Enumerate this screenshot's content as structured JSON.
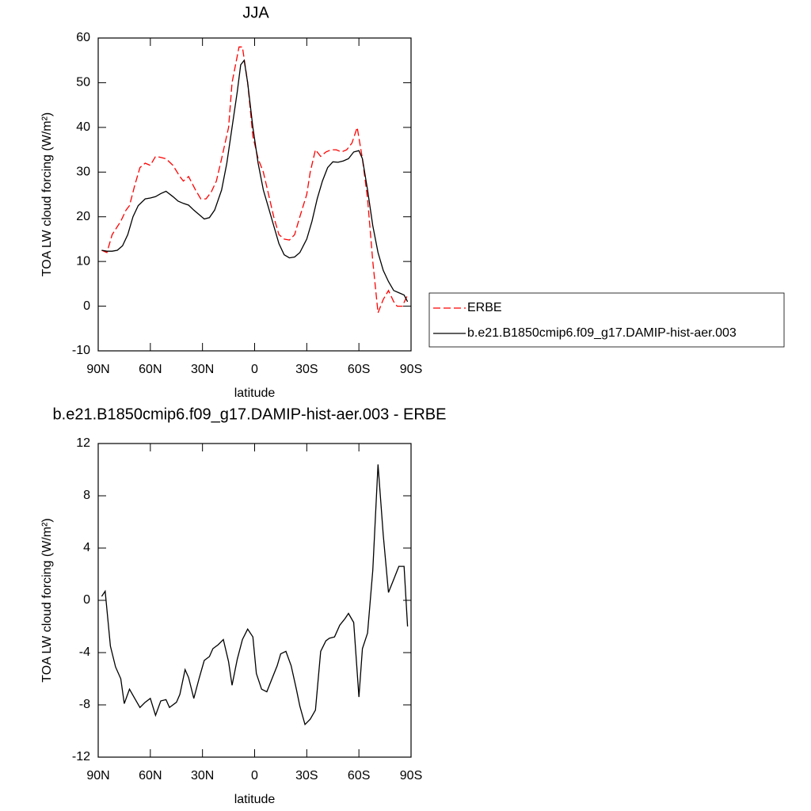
{
  "chart_data": [
    {
      "type": "line",
      "title": "JJA",
      "xlabel": "latitude",
      "ylabel": "TOA LW cloud forcing (W/m²)",
      "xlim": [
        90,
        -90
      ],
      "xticks": [
        {
          "value": 90,
          "label": "90N"
        },
        {
          "value": 60,
          "label": "60N"
        },
        {
          "value": 30,
          "label": "30N"
        },
        0,
        {
          "value": -30,
          "label": "30S"
        },
        {
          "value": -60,
          "label": "60S"
        },
        {
          "value": -90,
          "label": "90S"
        }
      ],
      "ylim": [
        -10,
        60
      ],
      "yticks": [
        -10,
        0,
        10,
        20,
        30,
        40,
        50,
        60
      ],
      "legend": "right",
      "series": [
        {
          "name": "ERBE",
          "color": "#ff0000",
          "dashed": true,
          "x": [
            88,
            85,
            82,
            77,
            74,
            72,
            69,
            66,
            63,
            60,
            57,
            54,
            51,
            47,
            43,
            41,
            38,
            34,
            31,
            28,
            25,
            22,
            19,
            15,
            13,
            10,
            9,
            7,
            4,
            1,
            -2,
            -5,
            -8,
            -11,
            -14,
            -17,
            -20,
            -23,
            -26,
            -30,
            -32,
            -35,
            -38,
            -41,
            -44,
            -47,
            -50,
            -53,
            -56,
            -59,
            -62,
            -65,
            -68,
            -71,
            -74,
            -77,
            -80,
            -82,
            -85,
            -88
          ],
          "values": [
            12.5,
            12,
            16,
            19,
            21.5,
            22.5,
            27,
            31,
            32,
            31.5,
            33.5,
            33.3,
            33,
            31.5,
            29,
            28,
            29,
            26,
            24,
            24,
            25.5,
            28,
            33,
            40,
            50,
            56,
            58,
            58,
            50,
            38,
            33,
            30,
            25,
            20,
            16,
            15,
            14.8,
            16,
            20,
            25,
            30,
            35,
            33.5,
            34.5,
            35,
            35,
            34.5,
            35,
            36.5,
            40,
            33,
            24,
            10,
            -1.5,
            1.5,
            3.5,
            1,
            0,
            0,
            2.5
          ]
        },
        {
          "name": "b.e21.B1850cmip6.f09_g17.DAMIP-hist-aer.003",
          "color": "#000000",
          "dashed": false,
          "x": [
            88,
            85,
            82,
            79,
            76,
            73,
            70,
            67,
            63,
            60,
            57,
            54,
            51,
            47,
            44,
            41,
            38,
            35,
            32,
            29,
            26,
            23,
            19,
            16,
            13,
            10,
            8,
            6,
            4,
            1,
            -2,
            -5,
            -8,
            -11,
            -14,
            -17,
            -20,
            -23,
            -26,
            -30,
            -33,
            -36,
            -39,
            -42,
            -45,
            -48,
            -51,
            -54,
            -57,
            -60,
            -62,
            -65,
            -68,
            -71,
            -74,
            -77,
            -80,
            -83,
            -86,
            -88
          ],
          "values": [
            12.5,
            12.3,
            12.3,
            12.5,
            13.5,
            16,
            20,
            22.5,
            24,
            24.2,
            24.5,
            25.2,
            25.7,
            24.5,
            23.5,
            23,
            22.6,
            21.5,
            20.5,
            19.5,
            19.8,
            21.5,
            26,
            32,
            40,
            48,
            54,
            55,
            50,
            40,
            32,
            26,
            22,
            18,
            14,
            11.5,
            10.8,
            11,
            12,
            15,
            19,
            24,
            28,
            31,
            32.3,
            32.2,
            32.5,
            33,
            34.5,
            34.8,
            33,
            26,
            18,
            12,
            8,
            5.5,
            3.5,
            3,
            2.5,
            1
          ]
        }
      ]
    },
    {
      "type": "line",
      "title": "b.e21.B1850cmip6.f09_g17.DAMIP-hist-aer.003 - ERBE",
      "xlabel": "latitude",
      "ylabel": "TOA LW cloud forcing (W/m²)",
      "xlim": [
        90,
        -90
      ],
      "xticks": [
        {
          "value": 90,
          "label": "90N"
        },
        {
          "value": 60,
          "label": "60N"
        },
        {
          "value": 30,
          "label": "30N"
        },
        0,
        {
          "value": -30,
          "label": "30S"
        },
        {
          "value": -60,
          "label": "60S"
        },
        {
          "value": -90,
          "label": "90S"
        }
      ],
      "ylim": [
        -12,
        12
      ],
      "yticks": [
        -12,
        -8,
        -4,
        0,
        4,
        8,
        12
      ],
      "series": [
        {
          "color": "#000000",
          "dashed": false,
          "x": [
            88,
            86,
            83,
            80,
            77,
            75,
            72,
            69,
            66,
            63,
            60,
            57,
            54,
            51,
            49,
            45,
            43,
            40,
            38,
            35,
            32,
            29,
            26,
            24,
            21,
            18,
            15,
            13,
            10,
            7,
            4,
            1,
            -1,
            -4,
            -7,
            -10,
            -13,
            -15,
            -18,
            -21,
            -24,
            -26,
            -29,
            -32,
            -35,
            -38,
            -41,
            -43,
            -46,
            -49,
            -52,
            -54,
            -57,
            -60,
            -62,
            -65,
            -68,
            -71,
            -74,
            -77,
            -80,
            -83,
            -86,
            -88
          ],
          "values": [
            0.3,
            0.7,
            -3.5,
            -5.1,
            -6,
            -7.9,
            -6.8,
            -7.5,
            -8.2,
            -7.8,
            -7.5,
            -8.8,
            -7.7,
            -7.6,
            -8.2,
            -7.8,
            -7.2,
            -5.3,
            -5.9,
            -7.5,
            -6,
            -4.6,
            -4.3,
            -3.7,
            -3.4,
            -3,
            -4.7,
            -6.5,
            -4.5,
            -3,
            -2.2,
            -2.8,
            -5.6,
            -6.8,
            -7,
            -6,
            -5,
            -4.1,
            -3.9,
            -5,
            -6.8,
            -8.1,
            -9.5,
            -9.1,
            -8.4,
            -3.9,
            -3.1,
            -2.9,
            -2.8,
            -1.9,
            -1.4,
            -1,
            -1.7,
            -7.4,
            -3.7,
            -2.5,
            2.3,
            10.4,
            5,
            0.6,
            1.6,
            2.6,
            2.6,
            -2
          ]
        }
      ]
    }
  ]
}
